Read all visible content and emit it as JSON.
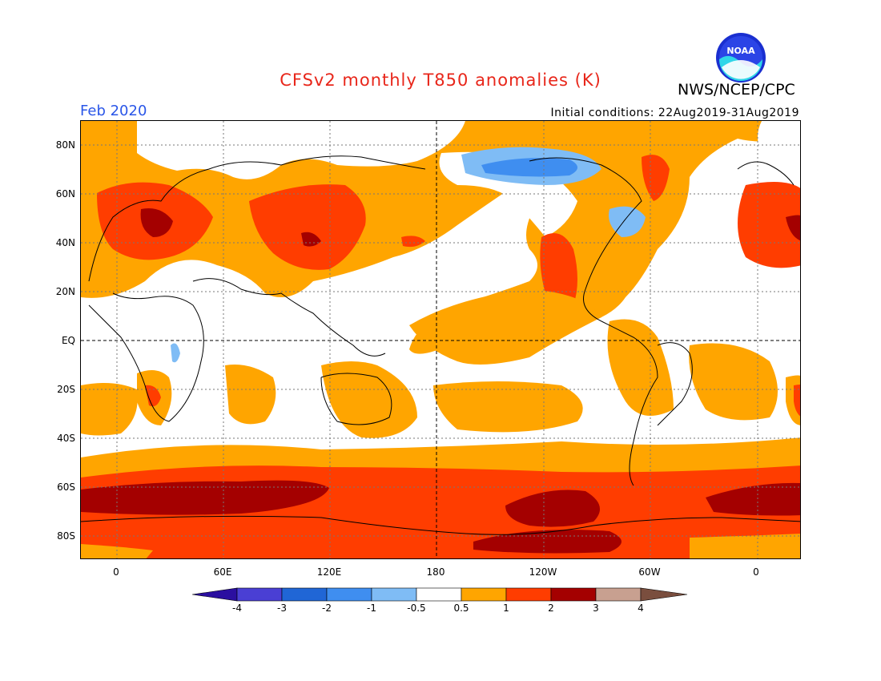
{
  "title": "CFSv2 monthly T850 anomalies (K)",
  "agency": "NWS/NCEP/CPC",
  "logo_text": "NOAA",
  "period": "Feb 2020",
  "initial_conditions": "Initial conditions: 22Aug2019-31Aug2019",
  "lat_labels": [
    "80N",
    "60N",
    "40N",
    "20N",
    "EQ",
    "20S",
    "40S",
    "60S",
    "80S"
  ],
  "lon_labels": [
    "0",
    "60E",
    "120E",
    "180",
    "120W",
    "60W",
    "0"
  ],
  "colorbar": {
    "labels": [
      "-4",
      "-3",
      "-2",
      "-1",
      "-0.5",
      "0.5",
      "1",
      "2",
      "3",
      "4"
    ],
    "colors": [
      "#2b0fa0",
      "#4a3fd4",
      "#2066d6",
      "#3f8ef0",
      "#7fbcf5",
      "#ffffff",
      "#ffa500",
      "#ff3d00",
      "#a40000",
      "#c8a090",
      "#7a4e3e"
    ]
  }
}
